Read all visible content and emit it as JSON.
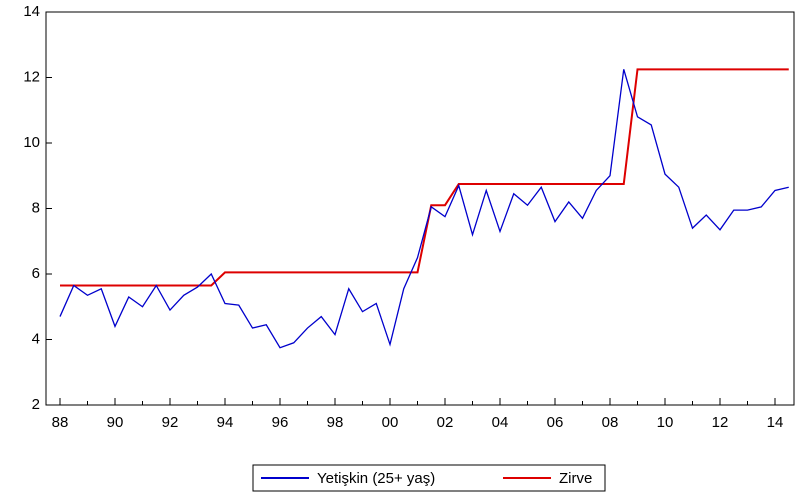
{
  "chart_data": {
    "type": "line",
    "categories": [
      "88",
      null,
      null,
      null,
      "90",
      null,
      null,
      null,
      "92",
      null,
      null,
      null,
      "94",
      null,
      null,
      null,
      "96",
      null,
      null,
      null,
      "98",
      null,
      null,
      null,
      "00",
      null,
      null,
      null,
      "02",
      null,
      null,
      null,
      "04",
      null,
      null,
      null,
      "06",
      null,
      null,
      null,
      "08",
      null,
      null,
      null,
      "10",
      null,
      null,
      null,
      "12",
      null,
      null,
      null,
      "14",
      null
    ],
    "series": [
      {
        "name": "Yetişkin (25+ yaş)",
        "color": "#0000cc",
        "values": [
          4.7,
          5.65,
          5.35,
          5.55,
          4.4,
          5.3,
          5.0,
          5.65,
          4.9,
          5.35,
          5.6,
          6.0,
          5.1,
          5.05,
          4.35,
          4.45,
          3.75,
          3.9,
          4.35,
          4.7,
          4.15,
          5.55,
          4.85,
          5.1,
          3.85,
          5.55,
          6.5,
          8.05,
          7.75,
          8.7,
          7.2,
          8.55,
          7.3,
          8.45,
          8.1,
          8.65,
          7.6,
          8.2,
          7.7,
          8.55,
          9.0,
          12.25,
          10.8,
          10.55,
          9.05,
          8.65,
          7.4,
          7.8,
          7.35,
          7.95,
          7.95,
          8.05,
          8.55,
          8.65
        ]
      },
      {
        "name": "Zirve",
        "color": "#dd0000",
        "values": [
          5.65,
          5.65,
          5.65,
          5.65,
          5.65,
          5.65,
          5.65,
          5.65,
          5.65,
          5.65,
          5.65,
          5.65,
          6.05,
          6.05,
          6.05,
          6.05,
          6.05,
          6.05,
          6.05,
          6.05,
          6.05,
          6.05,
          6.05,
          6.05,
          6.05,
          6.05,
          6.05,
          8.1,
          8.1,
          8.75,
          8.75,
          8.75,
          8.75,
          8.75,
          8.75,
          8.75,
          8.75,
          8.75,
          8.75,
          8.75,
          8.75,
          8.75,
          12.25,
          12.25,
          12.25,
          12.25,
          12.25,
          12.25,
          12.25,
          12.25,
          12.25,
          12.25,
          12.25,
          12.25
        ]
      }
    ],
    "ylim": [
      2,
      14
    ],
    "yticks": [
      2,
      4,
      6,
      8,
      10,
      12,
      14
    ],
    "grid": false,
    "legend": "bottom"
  }
}
